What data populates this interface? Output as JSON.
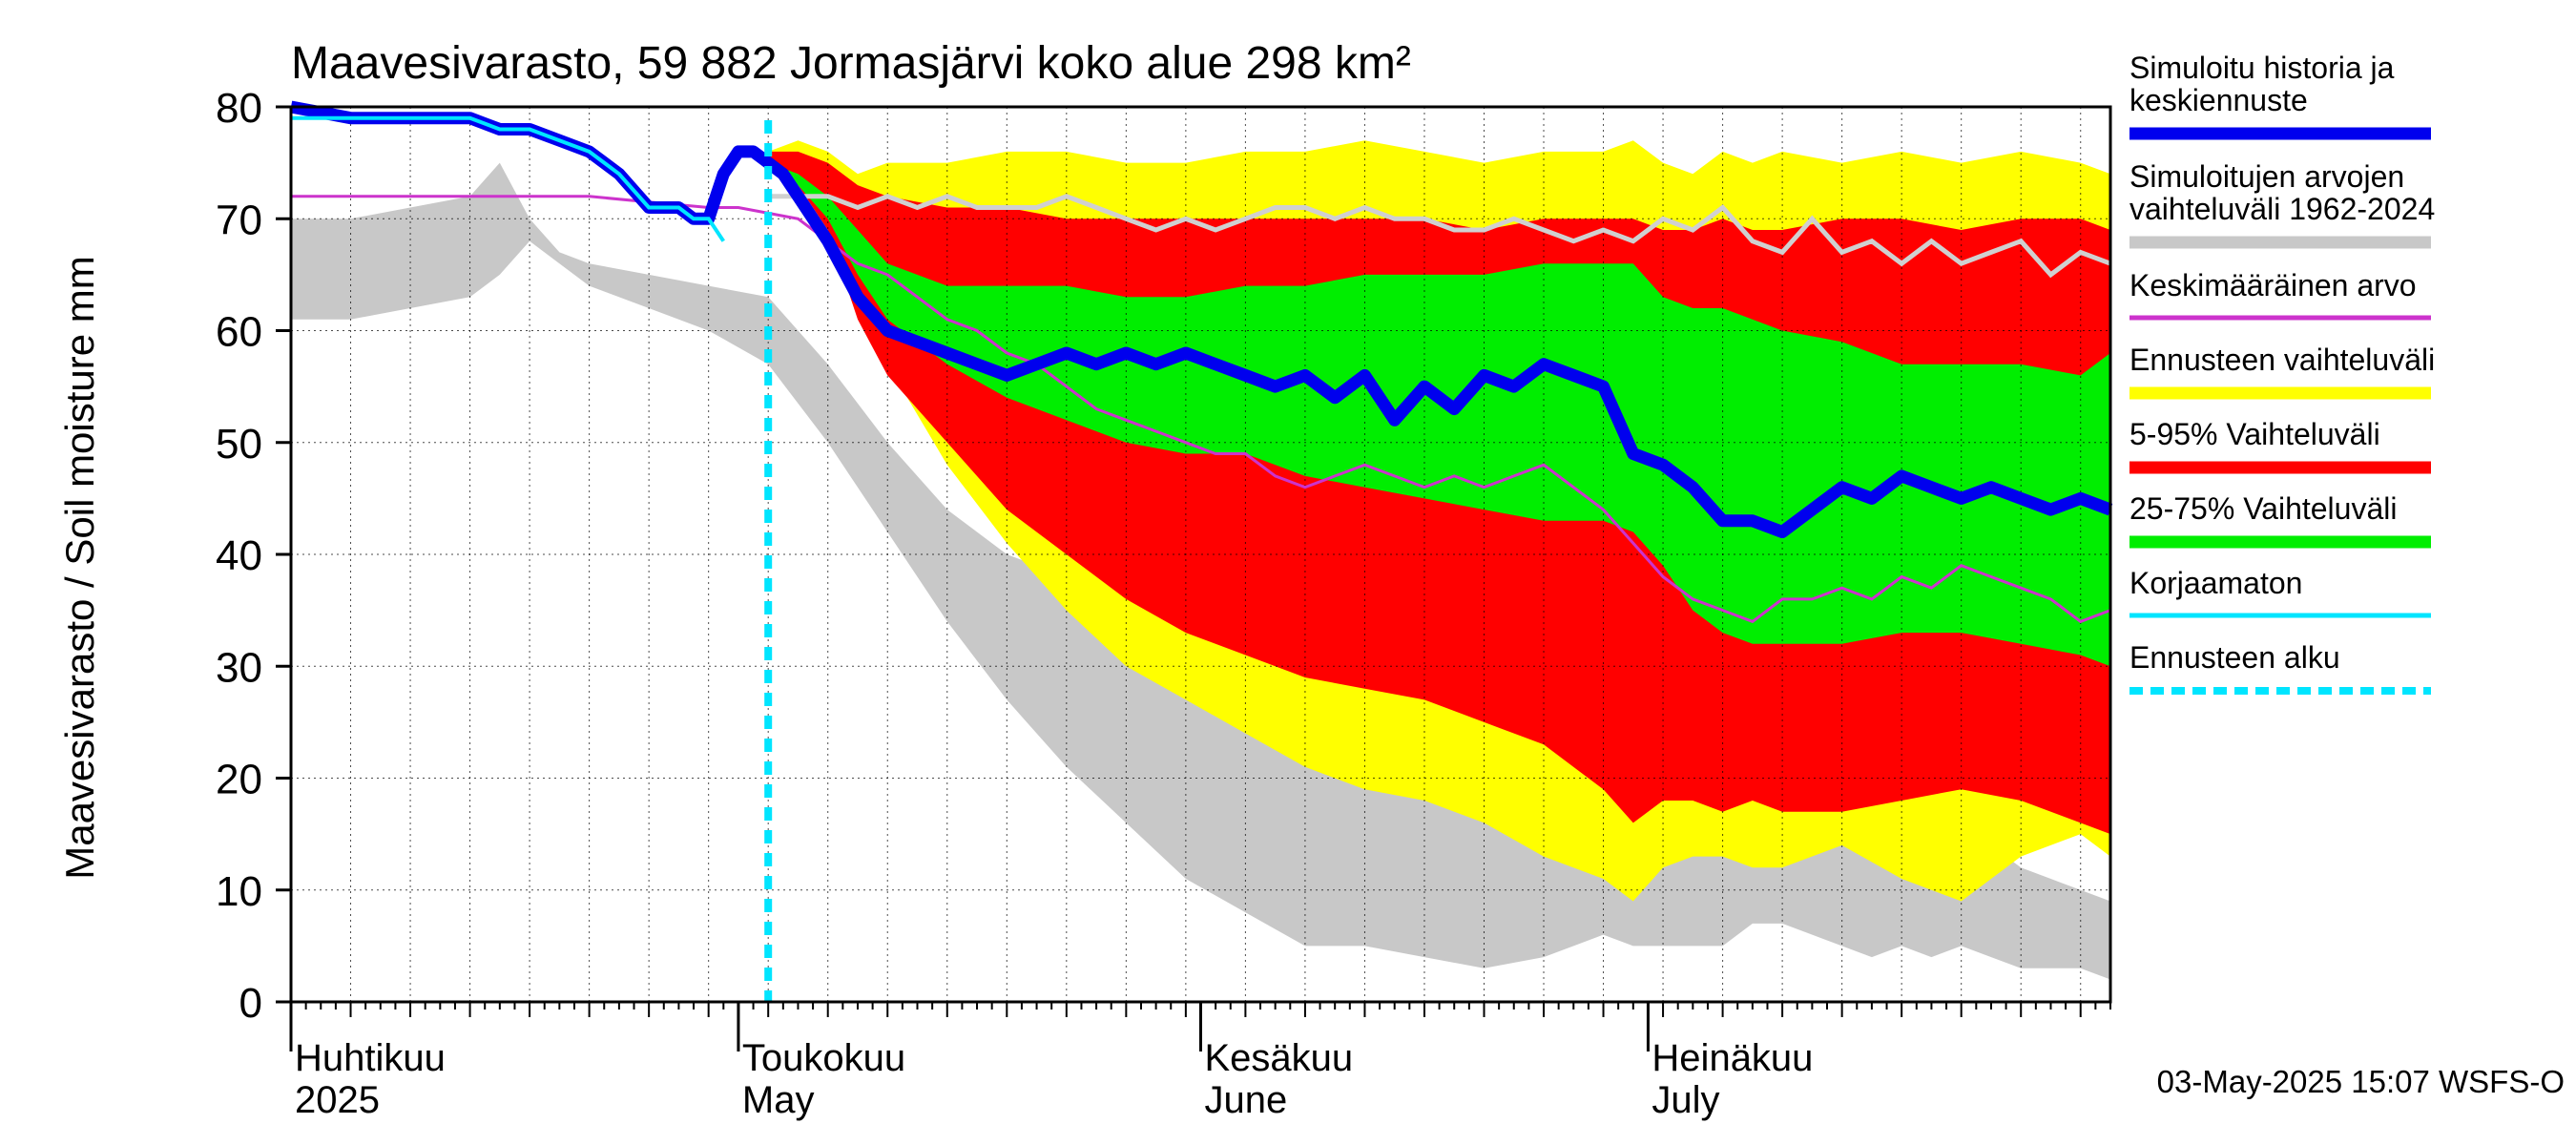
{
  "chart_data": {
    "type": "area",
    "title": "Maavesivarasto, 59 882 Jormasjärvi koko alue 298 km²",
    "ylabel": "Maavesivarasto / Soil moisture   mm",
    "xlabel": "",
    "ylim": [
      0,
      80
    ],
    "yticks": [
      0,
      10,
      20,
      30,
      40,
      50,
      60,
      70,
      80
    ],
    "x_start_day": 0,
    "x_end_day": 122,
    "forecast_start_day": 32,
    "month_labels": [
      {
        "fi": "Huhtikuu",
        "en": "2025",
        "day": 0
      },
      {
        "fi": "Toukokuu",
        "en": "May",
        "day": 30
      },
      {
        "fi": "Kesäkuu",
        "en": "June",
        "day": 61
      },
      {
        "fi": "Heinäkuu",
        "en": "July",
        "day": 91
      }
    ],
    "timestamp": "03-May-2025 15:07 WSFS-O",
    "legend": [
      {
        "label": "Simuloitu historia ja",
        "label2": "keskiennuste",
        "color": "#0000ee",
        "style": "thick"
      },
      {
        "label": "Simuloitujen arvojen",
        "label2": "vaihteluväli 1962-2024",
        "color": "#c8c8c8",
        "style": "thick"
      },
      {
        "label": "Keskimääräinen arvo",
        "label2": "",
        "color": "#cc33cc",
        "style": "thin"
      },
      {
        "label": "Ennusteen vaihteluväli",
        "label2": "",
        "color": "#ffff00",
        "style": "thick"
      },
      {
        "label": "5-95% Vaihteluväli",
        "label2": "",
        "color": "#ff0000",
        "style": "thick"
      },
      {
        "label": "25-75% Vaihteluväli",
        "label2": "",
        "color": "#00ee00",
        "style": "thick"
      },
      {
        "label": "Korjaamaton",
        "label2": "",
        "color": "#00e5ff",
        "style": "thin"
      },
      {
        "label": "Ennusteen alku",
        "label2": "",
        "color": "#00e5ff",
        "style": "dashed"
      }
    ],
    "series": [
      {
        "name": "hist_range",
        "x": [
          0,
          4,
          8,
          12,
          14,
          16,
          18,
          20,
          24,
          28,
          32,
          36,
          40,
          44,
          48,
          52,
          56,
          60,
          64,
          68,
          72,
          76,
          80,
          84,
          88,
          90,
          92,
          94,
          96,
          98,
          100,
          102,
          104,
          106,
          108,
          110,
          112,
          114,
          116,
          118,
          120,
          122
        ],
        "upper": [
          70,
          70,
          71,
          72,
          75,
          70,
          67,
          66,
          65,
          64,
          63,
          57,
          50,
          44,
          40,
          38,
          35,
          31,
          27,
          24,
          21,
          19,
          17,
          15,
          13,
          20,
          19,
          17,
          15,
          12,
          26,
          24,
          22,
          20,
          17,
          15,
          16,
          14,
          12,
          11,
          10,
          9
        ],
        "lower": [
          61,
          61,
          62,
          63,
          65,
          68,
          66,
          64,
          62,
          60,
          57,
          50,
          42,
          34,
          27,
          21,
          16,
          11,
          8,
          5,
          5,
          4,
          3,
          4,
          6,
          5,
          5,
          5,
          5,
          7,
          7,
          6,
          5,
          4,
          5,
          4,
          5,
          4,
          3,
          3,
          3,
          2
        ]
      },
      {
        "name": "forecast_range",
        "x": [
          32,
          34,
          36,
          38,
          40,
          44,
          48,
          52,
          56,
          60,
          64,
          68,
          72,
          76,
          80,
          84,
          88,
          90,
          92,
          94,
          96,
          98,
          100,
          104,
          108,
          112,
          116,
          120,
          122
        ],
        "upper": [
          76,
          77,
          76,
          74,
          75,
          75,
          76,
          76,
          75,
          75,
          76,
          76,
          77,
          76,
          75,
          76,
          76,
          77,
          75,
          74,
          76,
          75,
          76,
          75,
          76,
          75,
          76,
          75,
          74
        ],
        "lower": [
          75,
          74,
          70,
          63,
          57,
          48,
          41,
          35,
          30,
          27,
          24,
          21,
          19,
          18,
          16,
          13,
          11,
          9,
          12,
          13,
          13,
          12,
          12,
          14,
          11,
          9,
          13,
          15,
          13
        ]
      },
      {
        "name": "p5_95",
        "x": [
          32,
          34,
          36,
          38,
          40,
          44,
          48,
          52,
          56,
          60,
          64,
          68,
          72,
          76,
          80,
          84,
          88,
          90,
          92,
          94,
          96,
          98,
          100,
          104,
          108,
          112,
          116,
          120,
          122
        ],
        "upper": [
          76,
          76,
          75,
          73,
          72,
          71,
          71,
          70,
          70,
          70,
          70,
          70,
          70,
          70,
          69,
          70,
          70,
          70,
          69,
          69,
          70,
          69,
          69,
          70,
          70,
          69,
          70,
          70,
          69
        ],
        "lower": [
          75,
          73,
          69,
          61,
          56,
          50,
          44,
          40,
          36,
          33,
          31,
          29,
          28,
          27,
          25,
          23,
          19,
          16,
          18,
          18,
          17,
          18,
          17,
          17,
          18,
          19,
          18,
          16,
          15
        ]
      },
      {
        "name": "p25_75",
        "x": [
          32,
          34,
          36,
          38,
          40,
          44,
          48,
          52,
          56,
          60,
          64,
          68,
          72,
          76,
          80,
          84,
          88,
          90,
          92,
          94,
          96,
          98,
          100,
          104,
          108,
          112,
          116,
          120,
          122
        ],
        "upper": [
          75,
          74,
          72,
          69,
          66,
          64,
          64,
          64,
          63,
          63,
          64,
          64,
          65,
          65,
          65,
          66,
          66,
          66,
          63,
          62,
          62,
          61,
          60,
          59,
          57,
          57,
          57,
          56,
          58
        ],
        "lower": [
          75,
          73,
          70,
          65,
          61,
          57,
          54,
          52,
          50,
          49,
          49,
          47,
          46,
          45,
          44,
          43,
          43,
          42,
          39,
          35,
          33,
          32,
          32,
          32,
          33,
          33,
          32,
          31,
          30
        ]
      },
      {
        "name": "Simuloitu historia ja keskiennuste",
        "x": [
          0,
          4,
          8,
          12,
          14,
          16,
          18,
          20,
          22,
          24,
          26,
          27,
          28,
          29,
          30,
          31,
          32,
          33,
          34,
          36,
          38,
          40,
          42,
          44,
          46,
          48,
          50,
          52,
          54,
          56,
          58,
          60,
          62,
          64,
          66,
          68,
          70,
          72,
          74,
          76,
          78,
          80,
          82,
          84,
          86,
          88,
          90,
          92,
          94,
          96,
          98,
          100,
          102,
          104,
          106,
          108,
          110,
          112,
          114,
          116,
          118,
          120,
          122
        ],
        "y": [
          80,
          79,
          79,
          79,
          78,
          78,
          77,
          76,
          74,
          71,
          71,
          70,
          70,
          74,
          76,
          76,
          75,
          74,
          72,
          68,
          63,
          60,
          59,
          58,
          57,
          56,
          57,
          58,
          57,
          58,
          57,
          58,
          57,
          56,
          55,
          56,
          54,
          56,
          52,
          55,
          53,
          56,
          55,
          57,
          56,
          55,
          49,
          48,
          46,
          43,
          43,
          42,
          44,
          46,
          45,
          47,
          46,
          45,
          46,
          45,
          44,
          45,
          44
        ]
      },
      {
        "name": "Keskimääräinen arvo",
        "x": [
          0,
          4,
          8,
          12,
          16,
          20,
          24,
          28,
          30,
          32,
          34,
          36,
          38,
          40,
          42,
          44,
          46,
          48,
          50,
          52,
          54,
          56,
          58,
          60,
          62,
          64,
          66,
          68,
          70,
          72,
          74,
          76,
          78,
          80,
          82,
          84,
          86,
          88,
          90,
          92,
          94,
          96,
          98,
          100,
          102,
          104,
          106,
          108,
          110,
          112,
          114,
          116,
          118,
          120,
          122
        ],
        "y": [
          72,
          72,
          72,
          72,
          72,
          72,
          71.5,
          71,
          71,
          70.5,
          70,
          68,
          66,
          65,
          63,
          61,
          60,
          58,
          57,
          55,
          53,
          52,
          51,
          50,
          49,
          49,
          47,
          46,
          47,
          48,
          47,
          46,
          47,
          46,
          47,
          48,
          46,
          44,
          41,
          38,
          36,
          35,
          34,
          36,
          36,
          37,
          36,
          38,
          37,
          39,
          38,
          37,
          36,
          34,
          35
        ]
      },
      {
        "name": "Korjaamaton",
        "x": [
          0,
          4,
          8,
          12,
          14,
          16,
          18,
          20,
          22,
          24,
          26,
          27,
          28,
          29
        ],
        "y": [
          79,
          79,
          79,
          79,
          78,
          78,
          77,
          76,
          74,
          71,
          71,
          70,
          70,
          68
        ]
      },
      {
        "name": "hist_median",
        "x": [
          32,
          34,
          36,
          38,
          40,
          42,
          44,
          46,
          48,
          50,
          52,
          54,
          56,
          58,
          60,
          62,
          64,
          66,
          68,
          70,
          72,
          74,
          76,
          78,
          80,
          82,
          84,
          86,
          88,
          90,
          92,
          94,
          96,
          98,
          100,
          102,
          104,
          106,
          108,
          110,
          112,
          114,
          116,
          118,
          120,
          122
        ],
        "y": [
          72,
          72,
          72,
          71,
          72,
          71,
          72,
          71,
          71,
          71,
          72,
          71,
          70,
          69,
          70,
          69,
          70,
          71,
          71,
          70,
          71,
          70,
          70,
          69,
          69,
          70,
          69,
          68,
          69,
          68,
          70,
          69,
          71,
          68,
          67,
          70,
          67,
          68,
          66,
          68,
          66,
          67,
          68,
          65,
          67,
          66
        ]
      }
    ]
  }
}
